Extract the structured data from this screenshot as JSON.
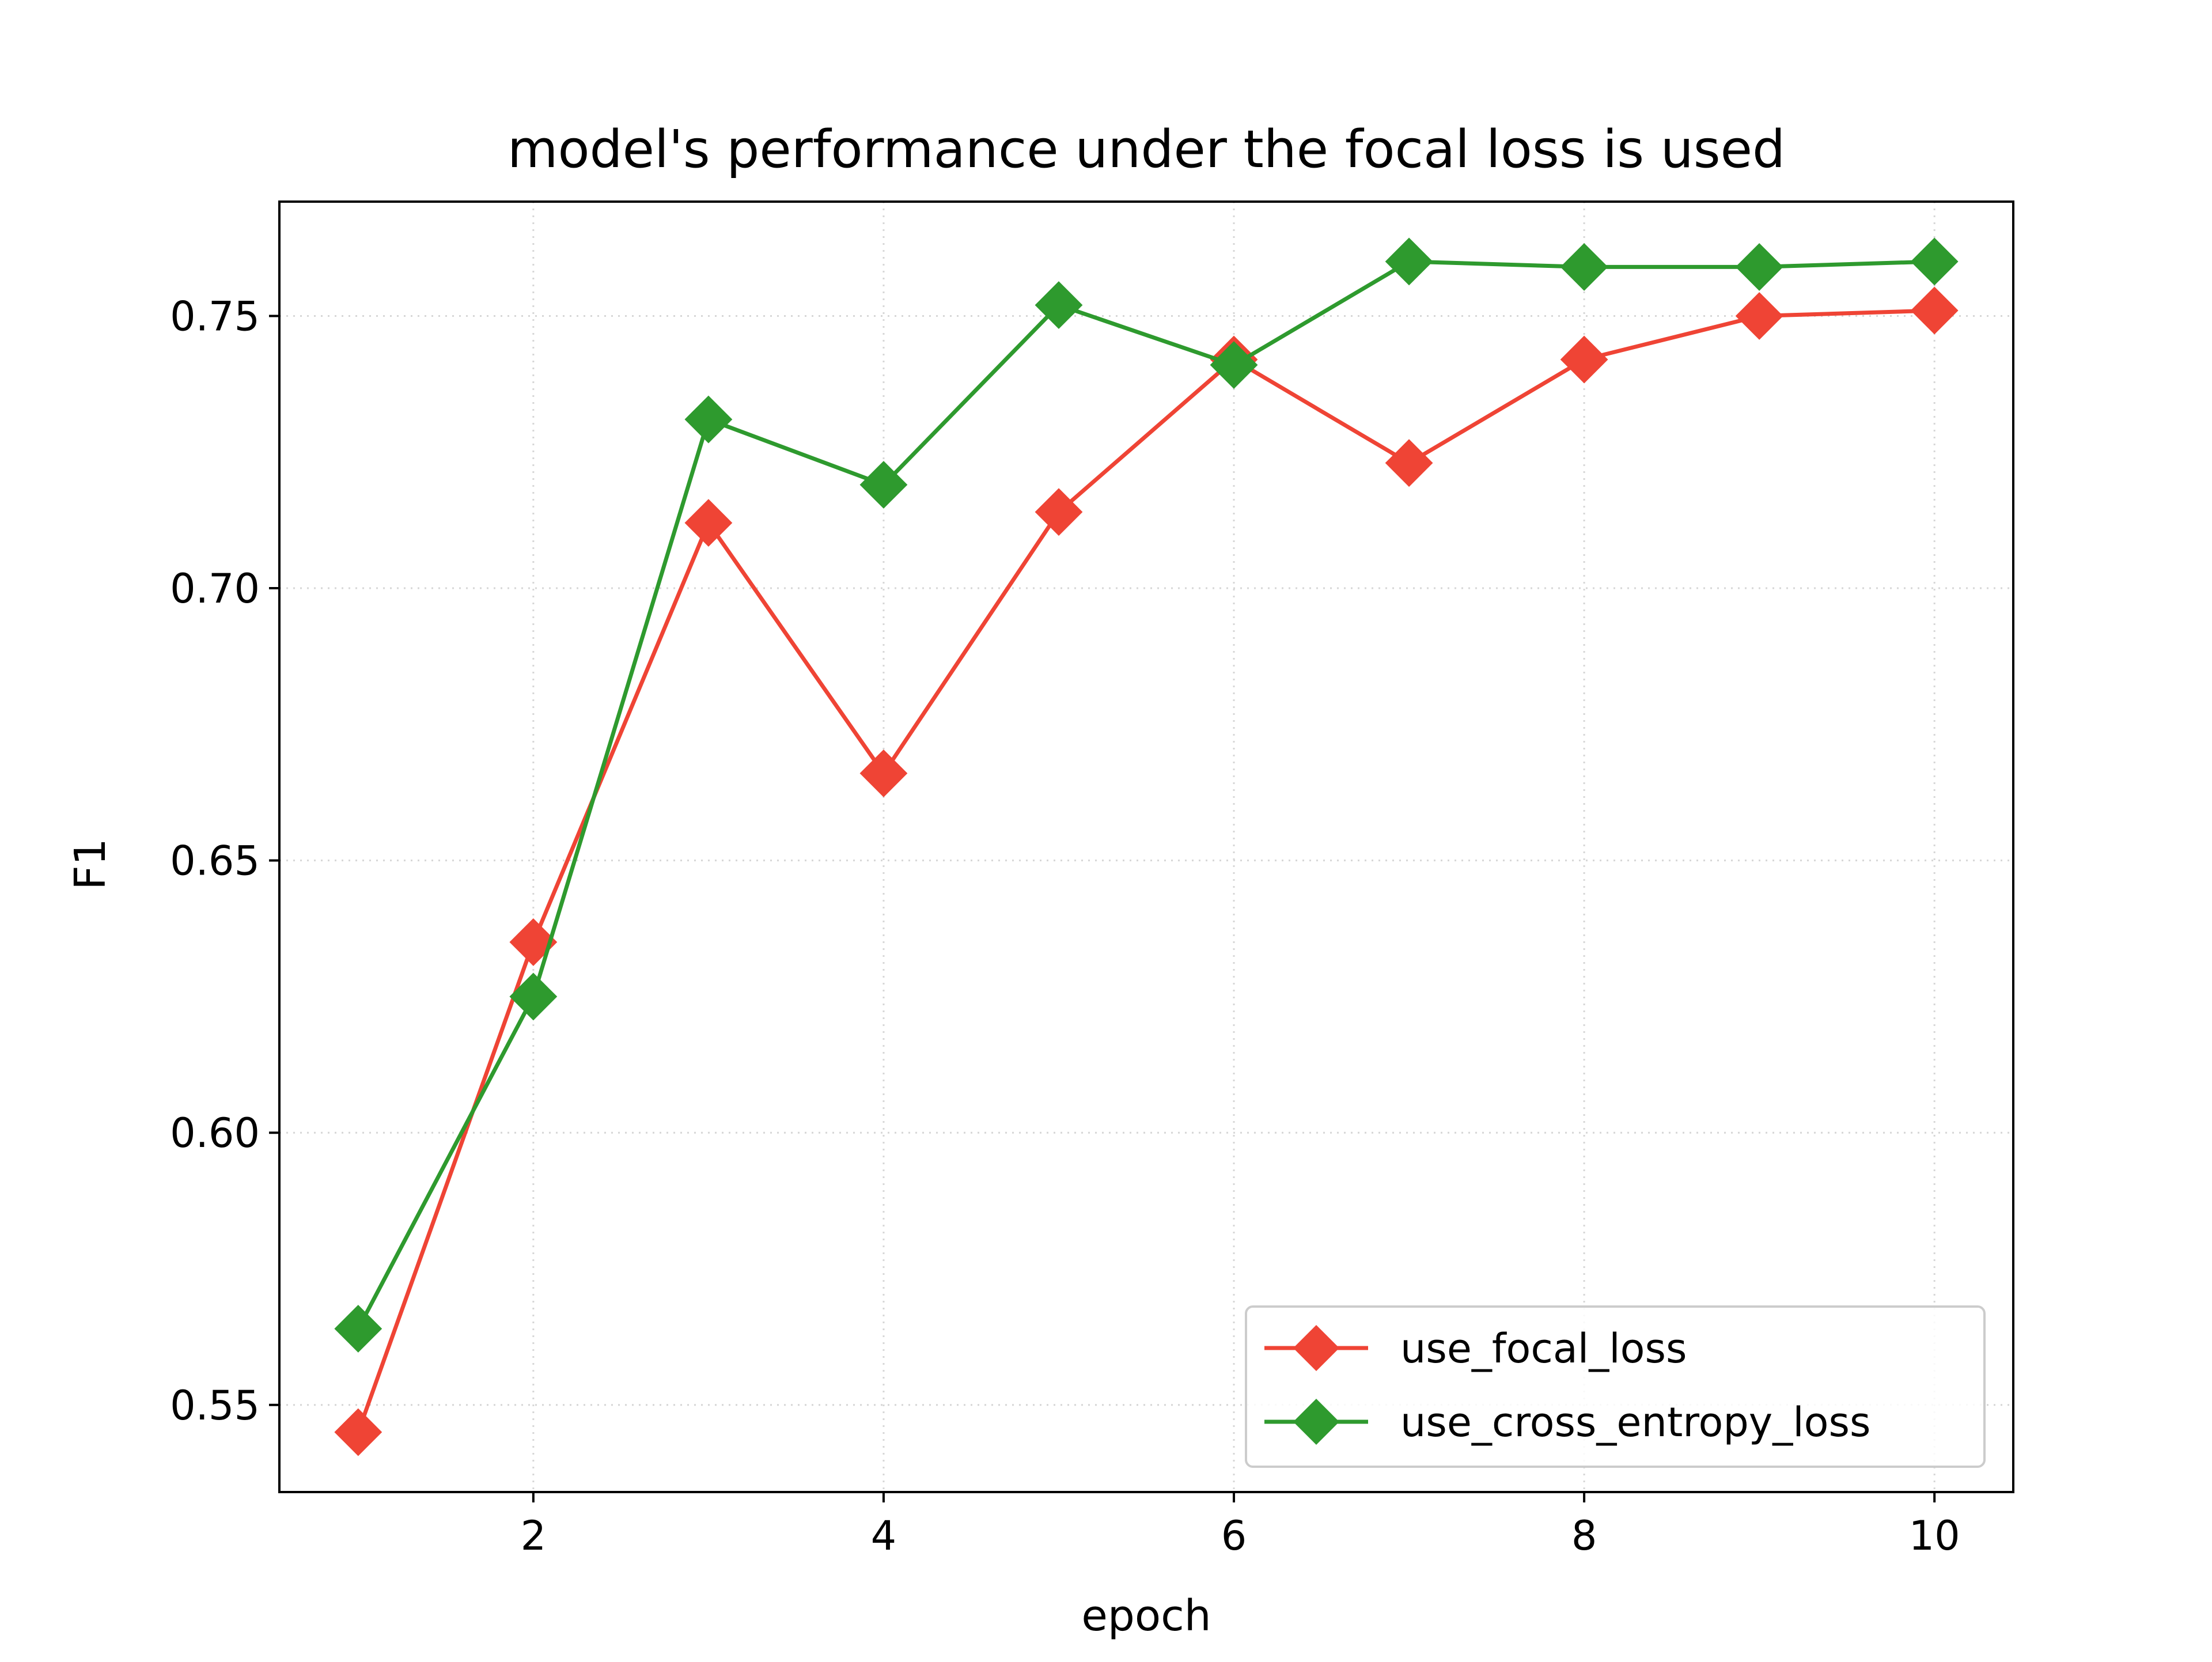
{
  "chart_data": {
    "type": "line",
    "title": "model's performance under the focal loss is used",
    "xlabel": "epoch",
    "ylabel": "F1",
    "x": [
      1,
      2,
      3,
      4,
      5,
      6,
      7,
      8,
      9,
      10
    ],
    "xlim": [
      0.55,
      10.45
    ],
    "ylim": [
      0.534,
      0.771
    ],
    "xticks": [
      2,
      4,
      6,
      8,
      10
    ],
    "xtick_labels": [
      "2",
      "4",
      "6",
      "8",
      "10"
    ],
    "yticks": [
      0.55,
      0.6,
      0.65,
      0.7,
      0.75
    ],
    "ytick_labels": [
      "0.55",
      "0.60",
      "0.65",
      "0.70",
      "0.75"
    ],
    "grid": true,
    "legend_position": "bottom-right",
    "series": [
      {
        "name": "use_focal_loss",
        "color": "#ef4435",
        "marker": "diamond",
        "values": [
          0.545,
          0.635,
          0.712,
          0.666,
          0.714,
          0.742,
          0.723,
          0.742,
          0.75,
          0.751
        ]
      },
      {
        "name": "use_cross_entropy_loss",
        "color": "#2e9a2e",
        "marker": "diamond",
        "values": [
          0.564,
          0.625,
          0.731,
          0.719,
          0.752,
          0.741,
          0.76,
          0.759,
          0.759,
          0.76
        ]
      }
    ]
  }
}
